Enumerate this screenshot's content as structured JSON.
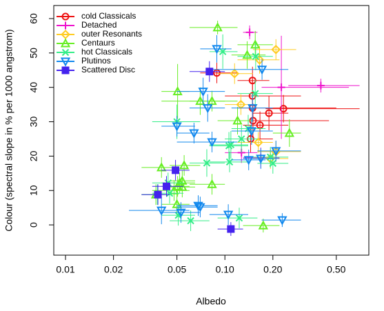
{
  "chart_data": {
    "type": "scatter",
    "x_label": "Albedo",
    "y_label": "Colour (spectral slope in % per 1000 angstrom)",
    "xscale": "log",
    "xlim": [
      0.00844,
      0.8
    ],
    "ylim": [
      -8.8,
      63.8
    ],
    "xticks": [
      0.01,
      0.02,
      0.05,
      {
        "value": 0.1,
        "label": "0.10"
      },
      {
        "value": 0.2,
        "label": "0.20"
      },
      {
        "value": 0.5,
        "label": "0.50"
      }
    ],
    "yticks": [
      0,
      10,
      20,
      30,
      40,
      50,
      60
    ],
    "legend": "top-left",
    "series": [
      {
        "name": "cold Classicals",
        "color": "#ee1111",
        "marker": "circle",
        "x": [
          0.089,
          0.149,
          0.149,
          0.149,
          0.15,
          0.166,
          0.189,
          0.233,
          0.145
        ],
        "values": [
          44.2,
          42,
          37.5,
          34,
          30.3,
          29,
          32.5,
          33.8,
          25
        ],
        "xerr": [
          [
            0.07,
            0.12
          ],
          [
            0.12,
            0.19
          ],
          [
            0.1,
            0.3
          ],
          [
            0.12,
            0.5
          ],
          [
            0.12,
            0.45
          ],
          [
            0.13,
            0.25
          ],
          [
            0.15,
            0.25
          ],
          [
            0.18,
            0.7
          ],
          [
            0.1,
            0.2
          ]
        ],
        "yerr": [
          3,
          4,
          5,
          4,
          5,
          4,
          5,
          4,
          4
        ]
      },
      {
        "name": "Detached",
        "color": "#ee11cc",
        "marker": "plus",
        "x": [
          0.143,
          0.226,
          0.4,
          0.127,
          0.168
        ],
        "values": [
          56,
          40,
          40.5,
          21,
          19.5
        ],
        "xerr": [
          [
            0.13,
            0.16
          ],
          [
            0.17,
            0.6
          ],
          [
            0.25,
            0.7
          ],
          [
            0.1,
            0.16
          ],
          [
            0.13,
            0.22
          ]
        ],
        "yerr": [
          2,
          15,
          2,
          3,
          3
        ]
      },
      {
        "name": "outer Resonants",
        "color": "#ffcc22",
        "marker": "diamond",
        "x": [
          0.209,
          0.165,
          0.115,
          0.126,
          0.162,
          0.193,
          0.209
        ],
        "values": [
          51,
          48,
          44,
          35,
          24,
          19.3,
          21.3
        ],
        "xerr": [
          [
            0.15,
            0.28
          ],
          [
            0.12,
            0.22
          ],
          [
            0.09,
            0.15
          ],
          [
            0.1,
            0.16
          ],
          [
            0.12,
            0.2
          ],
          [
            0.15,
            0.25
          ],
          [
            0.16,
            0.3
          ]
        ],
        "yerr": [
          3,
          4,
          3,
          3,
          3,
          3,
          3
        ]
      },
      {
        "name": "Centaurs",
        "color": "#66ee22",
        "marker": "triangle-up",
        "x": [
          0.09,
          0.155,
          0.138,
          0.0505,
          0.07,
          0.083,
          0.12,
          0.254,
          0.04,
          0.0555,
          0.083,
          0.0369,
          0.05,
          0.052,
          0.054,
          0.0505,
          0.048,
          0.174,
          0.054
        ],
        "values": [
          57.4,
          52.4,
          49.4,
          38.8,
          36,
          36,
          30.3,
          26.7,
          16.7,
          17.3,
          11.8,
          8.8,
          6,
          12.2,
          12.8,
          11.2,
          10,
          -0.2,
          11
        ],
        "xerr": [
          [
            0.06,
            0.12
          ],
          [
            0.12,
            0.2
          ],
          [
            0.11,
            0.18
          ],
          [
            0.04,
            0.06
          ],
          [
            0.04,
            0.1
          ],
          [
            0.06,
            0.12
          ],
          [
            0.09,
            0.15
          ],
          [
            0.2,
            0.3
          ],
          [
            0.03,
            0.05
          ],
          [
            0.045,
            0.07
          ],
          [
            0.06,
            0.1
          ],
          [
            0.03,
            0.045
          ],
          [
            0.04,
            0.06
          ],
          [
            0.04,
            0.065
          ],
          [
            0.045,
            0.065
          ],
          [
            0.04,
            0.06
          ],
          [
            0.035,
            0.06
          ],
          [
            0.13,
            0.22
          ],
          [
            0.045,
            0.065
          ]
        ],
        "yerr": [
          2,
          4,
          4,
          8,
          4,
          3,
          4,
          4,
          3,
          3,
          3,
          3,
          3,
          3,
          3,
          3,
          3,
          2,
          3
        ]
      },
      {
        "name": "hot Classicals",
        "color": "#33ee88",
        "marker": "cross",
        "x": [
          0.097,
          0.156,
          0.05,
          0.077,
          0.106,
          0.109,
          0.127,
          0.14,
          0.193,
          0.2,
          0.107,
          0.044,
          0.045,
          0.0377,
          0.061,
          0.123,
          0.051,
          0.155
        ],
        "values": [
          50.4,
          49,
          30,
          18,
          23,
          23.3,
          25,
          28,
          19.7,
          17.9,
          18.3,
          12.2,
          9.2,
          8.8,
          1.2,
          2,
          2.8,
          38.2
        ],
        "xerr": [
          [
            0.08,
            0.12
          ],
          [
            0.12,
            0.2
          ],
          [
            0.035,
            0.07
          ],
          [
            0.06,
            0.1
          ],
          [
            0.08,
            0.14
          ],
          [
            0.08,
            0.14
          ],
          [
            0.1,
            0.16
          ],
          [
            0.11,
            0.18
          ],
          [
            0.15,
            0.25
          ],
          [
            0.16,
            0.25
          ],
          [
            0.08,
            0.14
          ],
          [
            0.035,
            0.055
          ],
          [
            0.035,
            0.055
          ],
          [
            0.03,
            0.045
          ],
          [
            0.045,
            0.08
          ],
          [
            0.09,
            0.16
          ],
          [
            0.04,
            0.065
          ],
          [
            0.12,
            0.2
          ]
        ],
        "yerr": [
          5,
          4,
          5,
          4,
          4,
          4,
          4,
          4,
          3,
          3,
          3,
          3,
          3,
          3,
          3,
          3,
          3,
          4
        ]
      },
      {
        "name": "Plutinos",
        "color": "#1188ee",
        "marker": "triangle-down",
        "x": [
          0.089,
          0.171,
          0.073,
          0.078,
          0.149,
          0.05,
          0.064,
          0.147,
          0.209,
          0.083,
          0.141,
          0.168,
          0.04,
          0.053,
          0.068,
          0.07,
          0.105,
          0.229
        ],
        "values": [
          51.2,
          45.2,
          38.8,
          34,
          34,
          28.7,
          26.7,
          27.3,
          21.5,
          24.1,
          18.9,
          19.3,
          4.2,
          3.6,
          5.6,
          5.2,
          3,
          1.4
        ],
        "xerr": [
          [
            0.07,
            0.11
          ],
          [
            0.08,
            0.25
          ],
          [
            0.05,
            0.1
          ],
          [
            0.06,
            0.1
          ],
          [
            0.11,
            0.2
          ],
          [
            0.04,
            0.065
          ],
          [
            0.05,
            0.08
          ],
          [
            0.11,
            0.2
          ],
          [
            0.16,
            0.3
          ],
          [
            0.05,
            0.12
          ],
          [
            0.11,
            0.18
          ],
          [
            0.13,
            0.22
          ],
          [
            0.025,
            0.06
          ],
          [
            0.04,
            0.07
          ],
          [
            0.05,
            0.09
          ],
          [
            0.05,
            0.09
          ],
          [
            0.08,
            0.14
          ],
          [
            0.17,
            0.3
          ]
        ],
        "yerr": [
          4,
          3,
          4,
          4,
          4,
          3,
          3,
          4,
          3,
          3,
          3,
          3,
          4,
          3,
          3,
          3,
          3,
          2
        ]
      },
      {
        "name": "Scattered Disc",
        "color": "#4422ee",
        "marker": "square",
        "x": [
          0.08,
          0.049,
          0.043,
          0.038,
          0.109
        ],
        "values": [
          44.6,
          15.9,
          11.2,
          8.8,
          -1.2
        ],
        "xerr": [
          [
            0.06,
            0.1
          ],
          [
            0.04,
            0.06
          ],
          [
            0.035,
            0.055
          ],
          [
            0.03,
            0.045
          ],
          [
            0.09,
            0.13
          ]
        ],
        "yerr": [
          3,
          3,
          3,
          3,
          2
        ]
      }
    ]
  }
}
